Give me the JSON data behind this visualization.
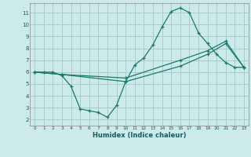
{
  "xlabel": "Humidex (Indice chaleur)",
  "bg_color": "#cceaea",
  "grid_color": "#aacccc",
  "line_color": "#1a7a6a",
  "xlim": [
    -0.5,
    23.5
  ],
  "ylim": [
    1.5,
    11.8
  ],
  "xticks": [
    0,
    1,
    2,
    3,
    4,
    5,
    6,
    7,
    8,
    9,
    10,
    11,
    12,
    13,
    14,
    15,
    16,
    17,
    18,
    19,
    20,
    21,
    22,
    23
  ],
  "yticks": [
    2,
    3,
    4,
    5,
    6,
    7,
    8,
    9,
    10,
    11
  ],
  "series1_x": [
    0,
    1,
    2,
    3,
    4,
    5,
    6,
    7,
    8,
    9,
    10,
    11,
    12,
    13,
    14,
    15,
    16,
    17,
    18,
    19,
    20,
    21,
    22,
    23
  ],
  "series1_y": [
    6.0,
    6.0,
    6.0,
    5.7,
    4.8,
    2.9,
    2.75,
    2.6,
    2.2,
    3.2,
    5.2,
    6.6,
    7.2,
    8.3,
    9.8,
    11.1,
    11.4,
    11.0,
    9.3,
    8.4,
    7.5,
    6.8,
    6.4,
    6.4
  ],
  "series2_x": [
    0,
    3,
    10,
    16,
    19,
    21,
    23
  ],
  "series2_y": [
    6.0,
    5.8,
    5.2,
    6.5,
    7.5,
    8.4,
    6.4
  ],
  "series3_x": [
    0,
    3,
    10,
    16,
    19,
    21,
    23
  ],
  "series3_y": [
    6.0,
    5.8,
    5.5,
    7.0,
    7.8,
    8.6,
    6.4
  ]
}
